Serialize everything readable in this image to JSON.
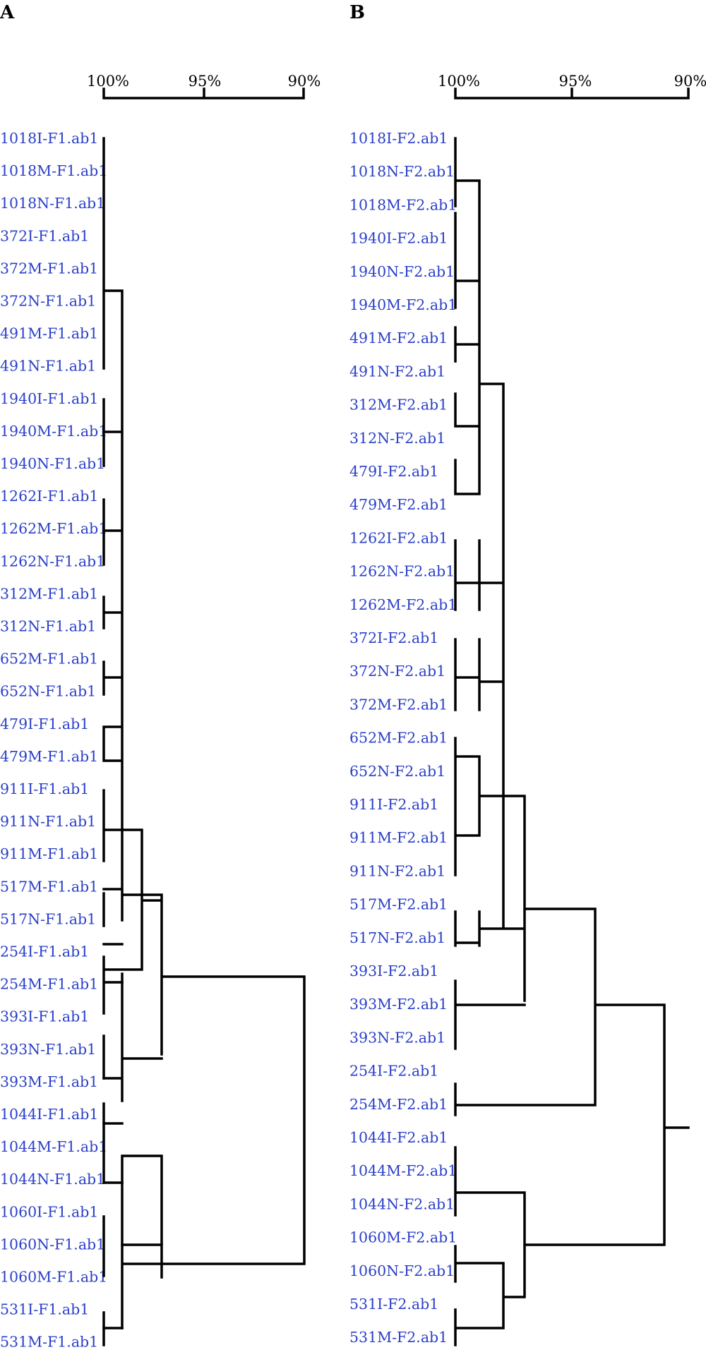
{
  "panels": [
    {
      "letter": "A",
      "scale_ticks": [
        "100%",
        "95%",
        "90%"
      ],
      "leaves": [
        "1018I-F1.ab1",
        "1018M-F1.ab1",
        "1018N-F1.ab1",
        "372I-F1.ab1",
        "372M-F1.ab1",
        "372N-F1.ab1",
        "491M-F1.ab1",
        "491N-F1.ab1",
        "1940I-F1.ab1",
        "1940M-F1.ab1",
        "1940N-F1.ab1",
        "1262I-F1.ab1",
        "1262M-F1.ab1",
        "1262N-F1.ab1",
        "312M-F1.ab1",
        "312N-F1.ab1",
        "652M-F1.ab1",
        "652N-F1.ab1",
        "479I-F1.ab1",
        "479M-F1.ab1",
        "911I-F1.ab1",
        "911N-F1.ab1",
        "911M-F1.ab1",
        "517M-F1.ab1",
        "517N-F1.ab1",
        "254I-F1.ab1",
        "254M-F1.ab1",
        "393I-F1.ab1",
        "393N-F1.ab1",
        "393M-F1.ab1",
        "1044I-F1.ab1",
        "1044M-F1.ab1",
        "1044N-F1.ab1",
        "1060I-F1.ab1",
        "1060N-F1.ab1",
        "1060M-F1.ab1",
        "531I-F1.ab1",
        "531M-F1.ab1"
      ]
    },
    {
      "letter": "B",
      "scale_ticks": [
        "100%",
        "95%",
        "90%"
      ],
      "leaves": [
        "1018I-F2.ab1",
        "1018N-F2.ab1",
        "1018M-F2.ab1",
        "1940I-F2.ab1",
        "1940N-F2.ab1",
        "1940M-F2.ab1",
        "491M-F2.ab1",
        "491N-F2.ab1",
        "312M-F2.ab1",
        "312N-F2.ab1",
        "479I-F2.ab1",
        "479M-F2.ab1",
        "1262I-F2.ab1",
        "1262N-F2.ab1",
        "1262M-F2.ab1",
        "372I-F2.ab1",
        "372N-F2.ab1",
        "372M-F2.ab1",
        "652M-F2.ab1",
        "652N-F2.ab1",
        "911I-F2.ab1",
        "911M-F2.ab1",
        "911N-F2.ab1",
        "517M-F2.ab1",
        "517N-F2.ab1",
        "393I-F2.ab1",
        "393M-F2.ab1",
        "393N-F2.ab1",
        "254I-F2.ab1",
        "254M-F2.ab1",
        "1044I-F2.ab1",
        "1044M-F2.ab1",
        "1044N-F2.ab1",
        "1060M-F2.ab1",
        "1060N-F2.ab1",
        "531I-F2.ab1",
        "531M-F2.ab1"
      ]
    }
  ]
}
